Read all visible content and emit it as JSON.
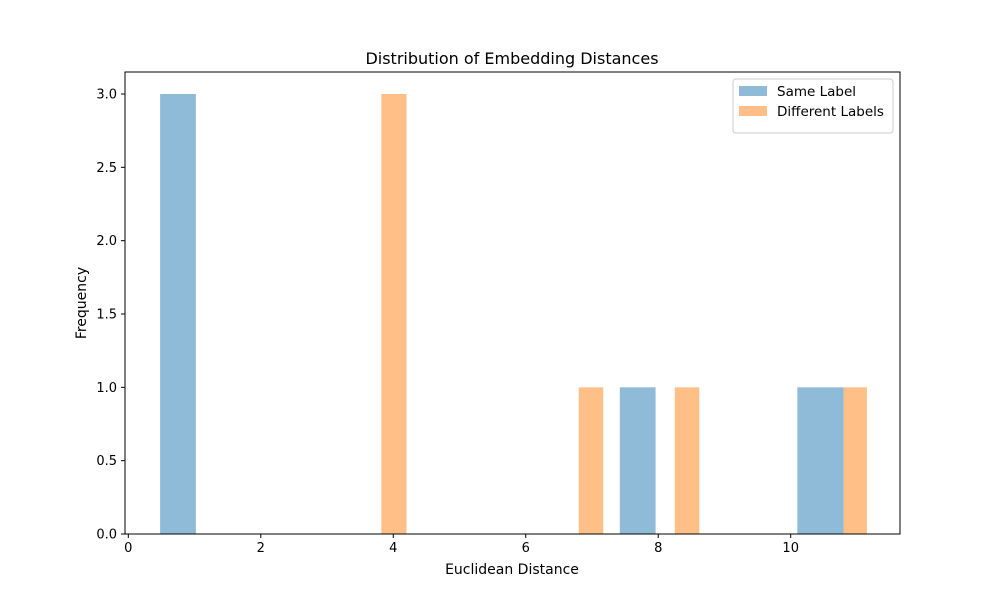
{
  "chart_data": {
    "type": "bar",
    "title": "Distribution of Embedding Distances",
    "xlabel": "Euclidean Distance",
    "ylabel": "Frequency",
    "xlim": [
      -0.05,
      11.65
    ],
    "ylim": [
      0,
      3.15
    ],
    "x_ticks": [
      0,
      2,
      4,
      6,
      8,
      10
    ],
    "y_ticks": [
      0.0,
      0.5,
      1.0,
      1.5,
      2.0,
      2.5,
      3.0
    ],
    "grid": false,
    "legend_position": "top-right",
    "series": [
      {
        "name": "Same Label",
        "color": "#1f77b4",
        "opacity": 0.5,
        "bins": [
          {
            "start": 0.48,
            "end": 1.02,
            "count": 3
          },
          {
            "start": 7.42,
            "end": 7.96,
            "count": 1
          },
          {
            "start": 10.1,
            "end": 10.8,
            "count": 1
          }
        ]
      },
      {
        "name": "Different Labels",
        "color": "#ff7f0e",
        "opacity": 0.5,
        "bins": [
          {
            "start": 3.82,
            "end": 4.2,
            "count": 3
          },
          {
            "start": 6.8,
            "end": 7.17,
            "count": 1
          },
          {
            "start": 8.25,
            "end": 8.62,
            "count": 1
          },
          {
            "start": 10.8,
            "end": 11.15,
            "count": 1
          }
        ]
      }
    ]
  }
}
